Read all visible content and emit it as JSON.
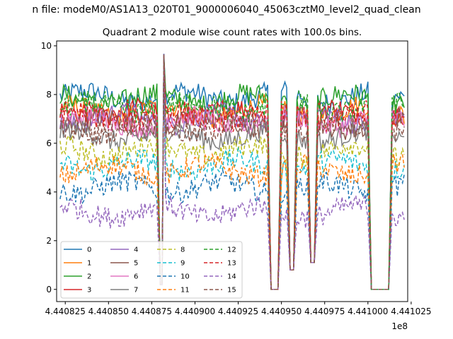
{
  "chart_data": {
    "type": "line",
    "suptitle": "n file: modeM0/AS1A13_020T01_9000006040_45063cztM0_level2_quad_clean",
    "title": "Quadrant 2 module wise count rates with 100.0s bins.",
    "xlabel": "",
    "ylabel": "",
    "x_offset_label": "1e8",
    "xlim": [
      444082000,
      444102300
    ],
    "ylim": [
      -0.5,
      10.2
    ],
    "x_ticks": [
      444082500,
      444085000,
      444087500,
      444090000,
      444092500,
      444095000,
      444097500,
      444100000,
      444102500
    ],
    "x_tick_labels": [
      "4.440825",
      "4.440850",
      "4.440875",
      "4.440900",
      "4.440925",
      "4.440950",
      "4.440975",
      "4.441000",
      "4.441025"
    ],
    "y_ticks": [
      0,
      2,
      4,
      6,
      8,
      10
    ],
    "y_tick_labels": [
      "0",
      "2",
      "4",
      "6",
      "8",
      "10"
    ],
    "grid": false,
    "legend": {
      "placement": "lower-left",
      "columns": 4
    },
    "series": [
      {
        "name": "0",
        "color": "#1f77b4",
        "style": "solid",
        "level": 7.9
      },
      {
        "name": "1",
        "color": "#ff7f0e",
        "style": "solid",
        "level": 7.3
      },
      {
        "name": "2",
        "color": "#2ca02c",
        "style": "solid",
        "level": 7.8
      },
      {
        "name": "3",
        "color": "#d62728",
        "style": "solid",
        "level": 7.2
      },
      {
        "name": "4",
        "color": "#9467bd",
        "style": "solid",
        "level": 7.0
      },
      {
        "name": "5",
        "color": "#8c564b",
        "style": "solid",
        "level": 6.8
      },
      {
        "name": "6",
        "color": "#e377c2",
        "style": "solid",
        "level": 6.9
      },
      {
        "name": "7",
        "color": "#7f7f7f",
        "style": "solid",
        "level": 6.3
      },
      {
        "name": "8",
        "color": "#bcbd22",
        "style": "dashed",
        "level": 5.7
      },
      {
        "name": "9",
        "color": "#17becf",
        "style": "dashed",
        "level": 5.1
      },
      {
        "name": "10",
        "color": "#1f77b4",
        "style": "dashed",
        "level": 4.2
      },
      {
        "name": "11",
        "color": "#ff7f0e",
        "style": "dashed",
        "level": 4.9
      },
      {
        "name": "12",
        "color": "#2ca02c",
        "style": "dashed",
        "level": 7.5
      },
      {
        "name": "13",
        "color": "#d62728",
        "style": "dashed",
        "level": 7.1
      },
      {
        "name": "14",
        "color": "#9467bd",
        "style": "dashed",
        "level": 3.2
      },
      {
        "name": "15",
        "color": "#8c564b",
        "style": "dashed",
        "level": 6.6
      }
    ],
    "spike": {
      "x": 444088200,
      "y": 9.7
    },
    "dips": [
      {
        "x_start": 444088000,
        "x_end": 444088100,
        "y": 0.2
      },
      {
        "x_start": 444094400,
        "x_end": 444094800,
        "y": 0.0
      },
      {
        "x_start": 444095500,
        "x_end": 444095700,
        "y": 0.8
      },
      {
        "x_start": 444096700,
        "x_end": 444096900,
        "y": 1.1
      },
      {
        "x_start": 444100200,
        "x_end": 444101200,
        "y": 0.0
      }
    ]
  }
}
